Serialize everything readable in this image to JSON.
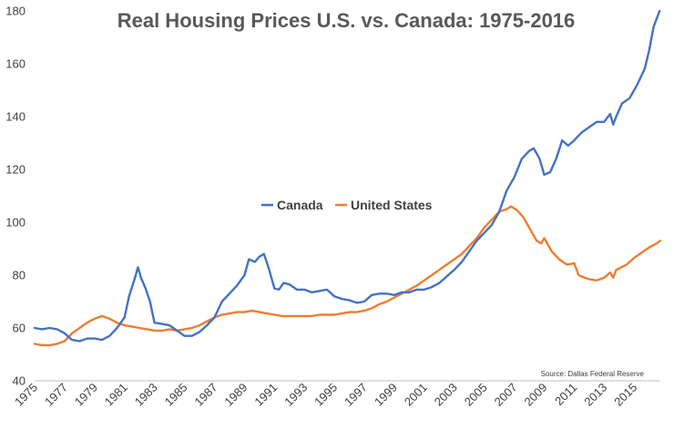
{
  "chart_data": {
    "type": "line",
    "title": "Real Housing Prices U.S. vs. Canada: 1975-2016",
    "source_note": "Source: Dallas Federal Reserve",
    "xlabel": "",
    "ylabel": "",
    "xlim": [
      1975,
      2016.75
    ],
    "ylim": [
      40,
      180
    ],
    "y_ticks": [
      40,
      60,
      80,
      100,
      120,
      140,
      160,
      180
    ],
    "x_tick_labels": [
      "1975",
      "1977",
      "1979",
      "1981",
      "1983",
      "1985",
      "1987",
      "1989",
      "1991",
      "1993",
      "1995",
      "1997",
      "1999",
      "2001",
      "2003",
      "2005",
      "2007",
      "2009",
      "2011",
      "2013",
      "2015"
    ],
    "grid": false,
    "legend_position": "center",
    "series": [
      {
        "name": "Canada",
        "color": "#4472C4",
        "points": [
          [
            1975.0,
            60.0
          ],
          [
            1975.5,
            59.5
          ],
          [
            1976.0,
            60.0
          ],
          [
            1976.5,
            59.5
          ],
          [
            1977.0,
            58.0
          ],
          [
            1977.5,
            55.5
          ],
          [
            1978.0,
            55.0
          ],
          [
            1978.5,
            56.0
          ],
          [
            1979.0,
            56.0
          ],
          [
            1979.5,
            55.5
          ],
          [
            1980.0,
            57.0
          ],
          [
            1980.5,
            60.0
          ],
          [
            1981.0,
            64.0
          ],
          [
            1981.3,
            72.0
          ],
          [
            1981.7,
            79.0
          ],
          [
            1981.9,
            83.0
          ],
          [
            1982.1,
            79.0
          ],
          [
            1982.4,
            75.0
          ],
          [
            1982.7,
            70.0
          ],
          [
            1983.0,
            62.0
          ],
          [
            1983.5,
            61.5
          ],
          [
            1984.0,
            61.0
          ],
          [
            1984.5,
            59.0
          ],
          [
            1985.0,
            57.0
          ],
          [
            1985.5,
            57.0
          ],
          [
            1986.0,
            58.5
          ],
          [
            1986.5,
            61.0
          ],
          [
            1987.0,
            64.0
          ],
          [
            1987.5,
            70.0
          ],
          [
            1988.0,
            73.0
          ],
          [
            1988.5,
            76.0
          ],
          [
            1989.0,
            80.0
          ],
          [
            1989.3,
            86.0
          ],
          [
            1989.7,
            85.0
          ],
          [
            1990.0,
            87.0
          ],
          [
            1990.3,
            88.0
          ],
          [
            1990.6,
            83.0
          ],
          [
            1991.0,
            75.0
          ],
          [
            1991.3,
            74.5
          ],
          [
            1991.6,
            77.0
          ],
          [
            1992.0,
            76.5
          ],
          [
            1992.5,
            74.5
          ],
          [
            1993.0,
            74.5
          ],
          [
            1993.5,
            73.5
          ],
          [
            1994.0,
            74.0
          ],
          [
            1994.5,
            74.5
          ],
          [
            1995.0,
            72.0
          ],
          [
            1995.5,
            71.0
          ],
          [
            1996.0,
            70.5
          ],
          [
            1996.5,
            69.5
          ],
          [
            1997.0,
            70.0
          ],
          [
            1997.5,
            72.5
          ],
          [
            1998.0,
            73.0
          ],
          [
            1998.5,
            73.0
          ],
          [
            1999.0,
            72.5
          ],
          [
            1999.5,
            73.5
          ],
          [
            2000.0,
            73.5
          ],
          [
            2000.5,
            74.5
          ],
          [
            2001.0,
            74.5
          ],
          [
            2001.5,
            75.5
          ],
          [
            2002.0,
            77.0
          ],
          [
            2002.5,
            79.5
          ],
          [
            2003.0,
            82.0
          ],
          [
            2003.5,
            85.0
          ],
          [
            2004.0,
            89.0
          ],
          [
            2004.5,
            93.0
          ],
          [
            2005.0,
            96.0
          ],
          [
            2005.5,
            99.0
          ],
          [
            2006.0,
            104.0
          ],
          [
            2006.5,
            112.0
          ],
          [
            2007.0,
            117.0
          ],
          [
            2007.5,
            124.0
          ],
          [
            2008.0,
            127.0
          ],
          [
            2008.3,
            128.0
          ],
          [
            2008.7,
            124.0
          ],
          [
            2009.0,
            118.0
          ],
          [
            2009.4,
            119.0
          ],
          [
            2009.8,
            124.0
          ],
          [
            2010.2,
            131.0
          ],
          [
            2010.6,
            129.0
          ],
          [
            2011.0,
            131.0
          ],
          [
            2011.5,
            134.0
          ],
          [
            2012.0,
            136.0
          ],
          [
            2012.5,
            138.0
          ],
          [
            2013.0,
            138.0
          ],
          [
            2013.4,
            141.0
          ],
          [
            2013.6,
            137.0
          ],
          [
            2013.8,
            140.0
          ],
          [
            2014.2,
            145.0
          ],
          [
            2014.7,
            147.0
          ],
          [
            2015.2,
            152.0
          ],
          [
            2015.7,
            158.0
          ],
          [
            2016.0,
            165.0
          ],
          [
            2016.3,
            174.0
          ],
          [
            2016.7,
            180.0
          ]
        ]
      },
      {
        "name": "United States",
        "color": "#ED7D31",
        "points": [
          [
            1975.0,
            54.0
          ],
          [
            1975.5,
            53.5
          ],
          [
            1976.0,
            53.5
          ],
          [
            1976.5,
            54.0
          ],
          [
            1977.0,
            55.0
          ],
          [
            1977.5,
            58.0
          ],
          [
            1978.0,
            60.0
          ],
          [
            1978.5,
            62.0
          ],
          [
            1979.0,
            63.5
          ],
          [
            1979.5,
            64.5
          ],
          [
            1980.0,
            63.5
          ],
          [
            1980.5,
            62.0
          ],
          [
            1981.0,
            61.0
          ],
          [
            1981.5,
            60.5
          ],
          [
            1982.0,
            60.0
          ],
          [
            1982.5,
            59.5
          ],
          [
            1983.0,
            59.0
          ],
          [
            1983.5,
            59.0
          ],
          [
            1984.0,
            59.5
          ],
          [
            1984.5,
            59.0
          ],
          [
            1985.0,
            59.5
          ],
          [
            1985.5,
            60.0
          ],
          [
            1986.0,
            61.0
          ],
          [
            1986.5,
            62.5
          ],
          [
            1987.0,
            64.0
          ],
          [
            1987.5,
            65.0
          ],
          [
            1988.0,
            65.5
          ],
          [
            1988.5,
            66.0
          ],
          [
            1989.0,
            66.0
          ],
          [
            1989.5,
            66.5
          ],
          [
            1990.0,
            66.0
          ],
          [
            1990.5,
            65.5
          ],
          [
            1991.0,
            65.0
          ],
          [
            1991.5,
            64.5
          ],
          [
            1992.0,
            64.5
          ],
          [
            1992.5,
            64.5
          ],
          [
            1993.0,
            64.5
          ],
          [
            1993.5,
            64.5
          ],
          [
            1994.0,
            65.0
          ],
          [
            1994.5,
            65.0
          ],
          [
            1995.0,
            65.0
          ],
          [
            1995.5,
            65.5
          ],
          [
            1996.0,
            66.0
          ],
          [
            1996.5,
            66.0
          ],
          [
            1997.0,
            66.5
          ],
          [
            1997.5,
            67.5
          ],
          [
            1998.0,
            69.0
          ],
          [
            1998.5,
            70.0
          ],
          [
            1999.0,
            71.5
          ],
          [
            1999.5,
            73.0
          ],
          [
            2000.0,
            74.5
          ],
          [
            2000.5,
            76.0
          ],
          [
            2001.0,
            78.0
          ],
          [
            2001.5,
            80.0
          ],
          [
            2002.0,
            82.0
          ],
          [
            2002.5,
            84.0
          ],
          [
            2003.0,
            86.0
          ],
          [
            2003.5,
            88.0
          ],
          [
            2004.0,
            91.0
          ],
          [
            2004.5,
            94.0
          ],
          [
            2005.0,
            98.0
          ],
          [
            2005.5,
            101.0
          ],
          [
            2006.0,
            104.0
          ],
          [
            2006.5,
            105.0
          ],
          [
            2006.8,
            106.0
          ],
          [
            2007.2,
            104.5
          ],
          [
            2007.6,
            102.0
          ],
          [
            2008.0,
            98.0
          ],
          [
            2008.5,
            93.0
          ],
          [
            2008.8,
            92.0
          ],
          [
            2009.0,
            94.0
          ],
          [
            2009.5,
            89.0
          ],
          [
            2010.0,
            86.0
          ],
          [
            2010.5,
            84.0
          ],
          [
            2011.0,
            84.5
          ],
          [
            2011.3,
            80.0
          ],
          [
            2011.7,
            79.0
          ],
          [
            2012.0,
            78.5
          ],
          [
            2012.5,
            78.0
          ],
          [
            2013.0,
            79.0
          ],
          [
            2013.4,
            81.0
          ],
          [
            2013.6,
            79.0
          ],
          [
            2013.8,
            82.0
          ],
          [
            2014.5,
            84.0
          ],
          [
            2015.0,
            86.5
          ],
          [
            2015.5,
            88.5
          ],
          [
            2016.0,
            90.5
          ],
          [
            2016.5,
            92.0
          ],
          [
            2016.75,
            93.0
          ]
        ]
      }
    ]
  }
}
